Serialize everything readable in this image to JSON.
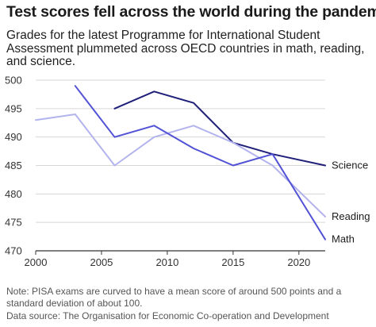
{
  "title": "Test scores fell across the world during the pandemic",
  "subtitle": "Grades for the latest Programme for International Student Assessment plummeted across OECD countries in math, reading, and science.",
  "note": "Note: PISA exams are curved to have a mean score of around 500 points and a standard deviation of about 100.",
  "source": "Data source: The Organisation for Economic Co-operation and Development",
  "chart_data": {
    "type": "line",
    "title": "Test scores fell across the world during the pandemic",
    "xlabel": "",
    "ylabel": "",
    "xlim": [
      2000,
      2022
    ],
    "ylim": [
      470,
      500
    ],
    "x_ticks": [
      2000,
      2005,
      2010,
      2015,
      2020
    ],
    "y_ticks": [
      470,
      475,
      480,
      485,
      490,
      495,
      500
    ],
    "grid": "horizontal",
    "legend": "none (direct labels at line ends)",
    "series": [
      {
        "name": "Science",
        "color": "#1f1f7a",
        "x": [
          2006,
          2009,
          2012,
          2015,
          2018,
          2022
        ],
        "y": [
          495,
          498,
          496,
          489,
          487,
          485
        ]
      },
      {
        "name": "Reading",
        "color": "#b3b3ee",
        "x": [
          2000,
          2003,
          2006,
          2009,
          2012,
          2015,
          2018,
          2022
        ],
        "y": [
          493,
          494,
          485,
          490,
          492,
          489,
          485,
          476
        ]
      },
      {
        "name": "Math",
        "color": "#5252d6",
        "x": [
          2003,
          2006,
          2009,
          2012,
          2015,
          2018,
          2022
        ],
        "y": [
          499,
          490,
          492,
          488,
          485,
          487,
          472
        ]
      }
    ]
  }
}
